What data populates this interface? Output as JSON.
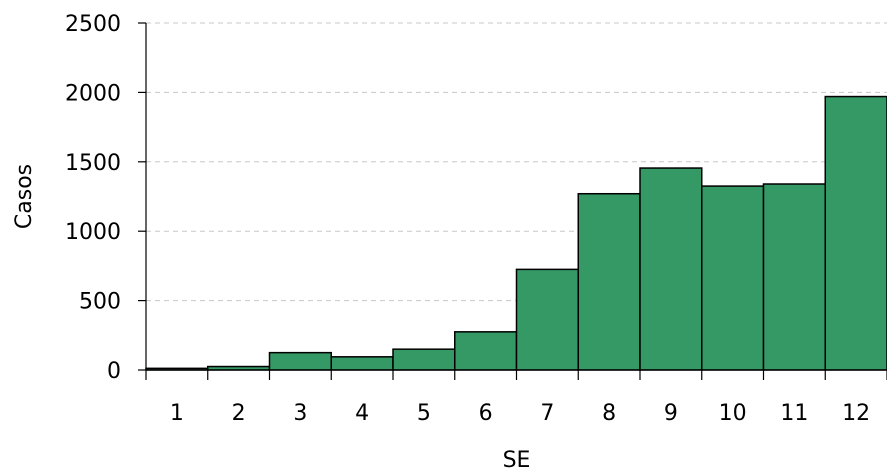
{
  "chart_data": {
    "type": "bar",
    "categories": [
      "1",
      "2",
      "3",
      "4",
      "5",
      "6",
      "7",
      "8",
      "9",
      "10",
      "11",
      "12"
    ],
    "values": [
      12,
      25,
      125,
      95,
      150,
      275,
      725,
      1270,
      1455,
      1325,
      1340,
      1970
    ],
    "title": "",
    "xlabel": "SE",
    "ylabel": "Casos",
    "ylim": [
      0,
      2500
    ],
    "yticks": [
      "0",
      "500",
      "1000",
      "1500",
      "2000",
      "2500"
    ],
    "grid": true,
    "legend": "none",
    "bar_color": "#359966"
  }
}
